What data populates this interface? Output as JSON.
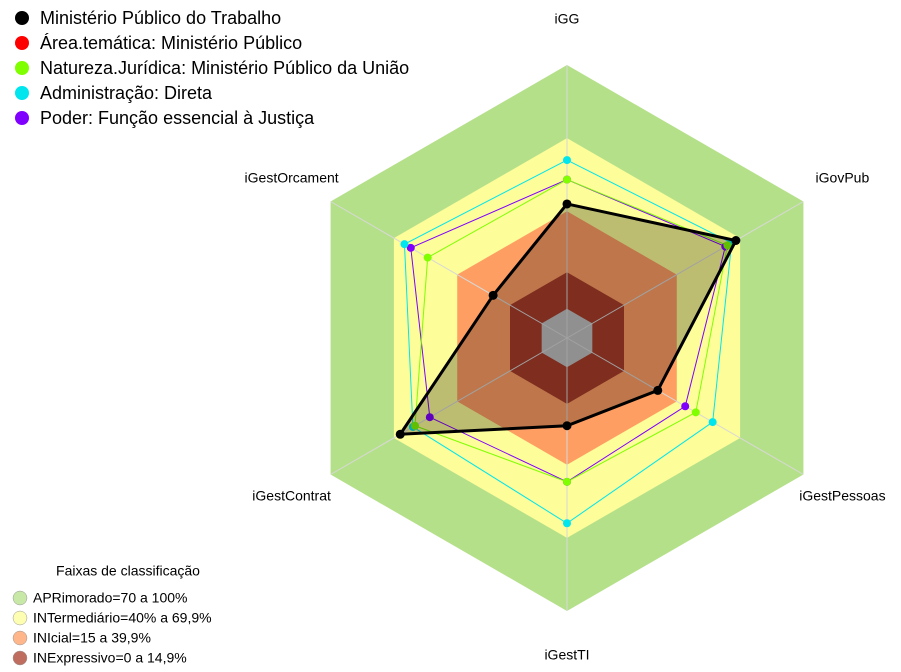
{
  "chart_data": {
    "type": "radar",
    "categories": [
      "iGG",
      "iGovPub",
      "iGestPessoas",
      "iGestTI",
      "iGestContrat",
      "iGestOrcament"
    ],
    "ylim": [
      -12,
      100
    ],
    "series": [
      {
        "name": "Ministério Público do Trabalho",
        "color": "#000000",
        "values": [
          43,
          68,
          31,
          24,
          67,
          23
        ]
      },
      {
        "name": "Área.temática: Ministério Público",
        "color": "#ff0000",
        "values": [
          43,
          68,
          31,
          24,
          67,
          23
        ]
      },
      {
        "name": "Natureza.Jurídica: Ministério Público da União",
        "color": "#7fff00",
        "values": [
          53,
          64,
          49,
          47,
          60,
          54
        ]
      },
      {
        "name": "Administração: Direta",
        "color": "#00e5ee",
        "values": [
          61,
          66,
          57,
          64,
          61,
          65
        ]
      },
      {
        "name": "Poder: Função essencial à Justiça",
        "color": "#8000ff",
        "values": [
          53,
          63,
          44,
          47,
          53,
          62
        ]
      }
    ],
    "bands_title": "Faixas de classificação",
    "bands": [
      {
        "label": "APRimorado=70 a 100%",
        "min": 70,
        "max": 100,
        "color": "#b5e08a"
      },
      {
        "label": "INTermediário=40% a 69,9%",
        "min": 40,
        "max": 70,
        "color": "#fdfd99"
      },
      {
        "label": "INIcial=15 a 39,9%",
        "min": 15,
        "max": 40,
        "color": "#fe9e63"
      },
      {
        "label": "INExpressivo=0 a 14,9%",
        "min": 0,
        "max": 15,
        "color": "#a83c28"
      }
    ],
    "center_color": "#c0c0c0"
  }
}
